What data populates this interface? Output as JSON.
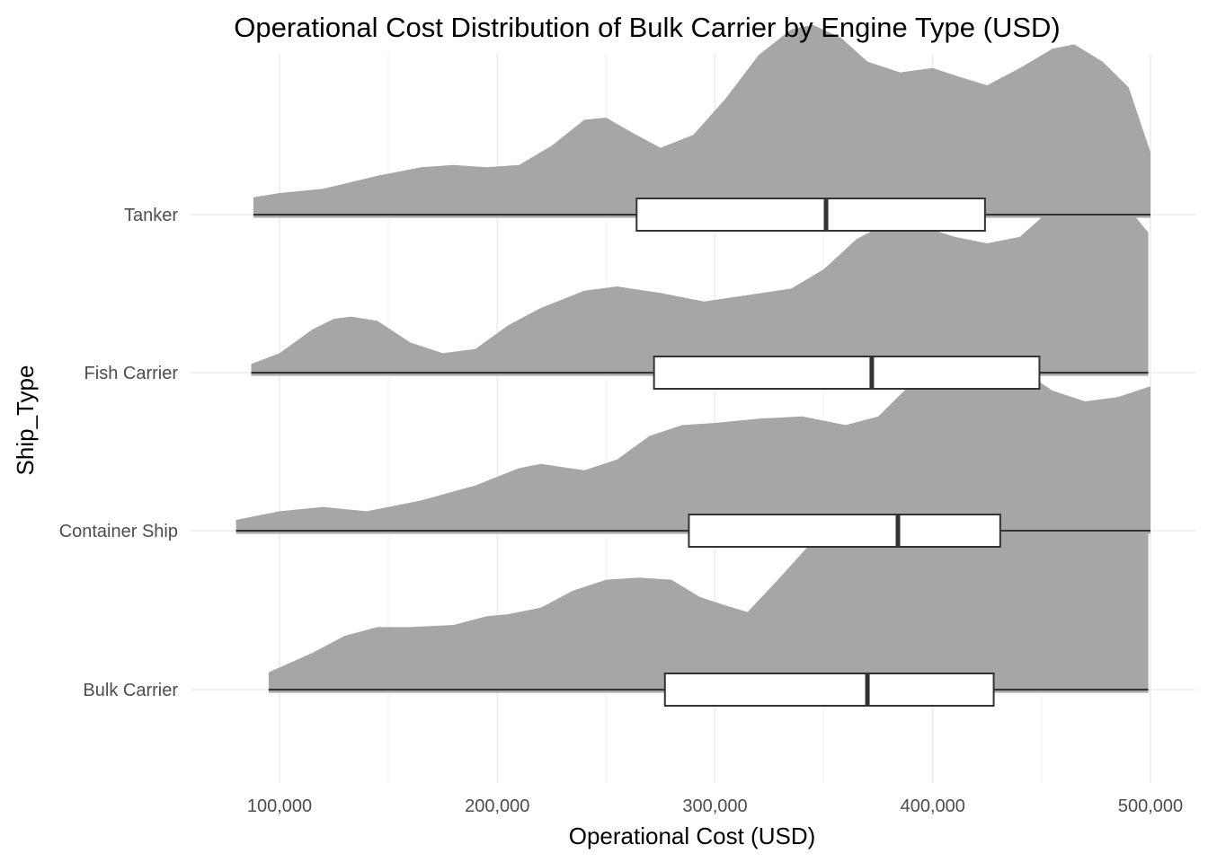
{
  "chart_data": {
    "type": "ridgeline",
    "title": "Operational Cost Distribution of Bulk Carrier by Engine Type (USD)",
    "xlabel": "Operational Cost (USD)",
    "ylabel": "Ship_Type",
    "xlim": [
      60000,
      520000
    ],
    "x_ticks": [
      100000,
      200000,
      300000,
      400000,
      500000
    ],
    "x_tick_labels": [
      "100,000",
      "200,000",
      "300,000",
      "400,000",
      "500,000"
    ],
    "categories": [
      "Bulk Carrier",
      "Container Ship",
      "Fish Carrier",
      "Tanker"
    ],
    "grid": true,
    "fill_color": "#a6a6a6",
    "box_color": "#ffffff",
    "line_color": "#333333",
    "series": [
      {
        "name": "Bulk Carrier",
        "density": [
          [
            95000,
            0.08
          ],
          [
            115000,
            0.17
          ],
          [
            130000,
            0.25
          ],
          [
            145000,
            0.29
          ],
          [
            160000,
            0.29
          ],
          [
            180000,
            0.3
          ],
          [
            195000,
            0.34
          ],
          [
            205000,
            0.35
          ],
          [
            220000,
            0.38
          ],
          [
            235000,
            0.46
          ],
          [
            250000,
            0.51
          ],
          [
            265000,
            0.52
          ],
          [
            280000,
            0.51
          ],
          [
            293000,
            0.43
          ],
          [
            305000,
            0.39
          ],
          [
            315000,
            0.36
          ],
          [
            328000,
            0.5
          ],
          [
            345000,
            0.69
          ],
          [
            362000,
            0.78
          ],
          [
            380000,
            0.8
          ],
          [
            395000,
            0.86
          ],
          [
            410000,
            0.95
          ],
          [
            420000,
            0.96
          ],
          [
            435000,
            0.91
          ],
          [
            455000,
            0.82
          ],
          [
            470000,
            0.77
          ],
          [
            485000,
            0.79
          ],
          [
            499000,
            0.87
          ]
        ],
        "box": {
          "q1": 277000,
          "median": 370000,
          "q3": 428000,
          "min": 95000,
          "max": 499000
        }
      },
      {
        "name": "Container Ship",
        "density": [
          [
            80000,
            0.05
          ],
          [
            100000,
            0.09
          ],
          [
            120000,
            0.11
          ],
          [
            140000,
            0.09
          ],
          [
            165000,
            0.14
          ],
          [
            190000,
            0.21
          ],
          [
            210000,
            0.29
          ],
          [
            220000,
            0.31
          ],
          [
            240000,
            0.28
          ],
          [
            255000,
            0.33
          ],
          [
            270000,
            0.44
          ],
          [
            285000,
            0.49
          ],
          [
            300000,
            0.5
          ],
          [
            320000,
            0.52
          ],
          [
            340000,
            0.53
          ],
          [
            360000,
            0.49
          ],
          [
            375000,
            0.53
          ],
          [
            390000,
            0.68
          ],
          [
            405000,
            0.8
          ],
          [
            417000,
            0.87
          ],
          [
            427000,
            0.85
          ],
          [
            440000,
            0.75
          ],
          [
            455000,
            0.65
          ],
          [
            470000,
            0.6
          ],
          [
            485000,
            0.62
          ],
          [
            500000,
            0.67
          ]
        ],
        "box": {
          "q1": 288000,
          "median": 384000,
          "q3": 431000,
          "min": 80000,
          "max": 500000
        }
      },
      {
        "name": "Fish Carrier",
        "density": [
          [
            87000,
            0.04
          ],
          [
            100000,
            0.09
          ],
          [
            115000,
            0.2
          ],
          [
            125000,
            0.25
          ],
          [
            133000,
            0.26
          ],
          [
            145000,
            0.24
          ],
          [
            160000,
            0.14
          ],
          [
            175000,
            0.09
          ],
          [
            190000,
            0.11
          ],
          [
            205000,
            0.22
          ],
          [
            220000,
            0.3
          ],
          [
            240000,
            0.38
          ],
          [
            255000,
            0.4
          ],
          [
            275000,
            0.37
          ],
          [
            295000,
            0.33
          ],
          [
            315000,
            0.36
          ],
          [
            335000,
            0.39
          ],
          [
            350000,
            0.48
          ],
          [
            365000,
            0.62
          ],
          [
            380000,
            0.7
          ],
          [
            395000,
            0.68
          ],
          [
            410000,
            0.63
          ],
          [
            425000,
            0.6
          ],
          [
            440000,
            0.63
          ],
          [
            450000,
            0.72
          ],
          [
            462000,
            0.86
          ],
          [
            470000,
            0.89
          ],
          [
            480000,
            0.86
          ],
          [
            490000,
            0.76
          ],
          [
            499000,
            0.65
          ]
        ],
        "box": {
          "q1": 272000,
          "median": 372000,
          "q3": 449000,
          "min": 87000,
          "max": 499000
        }
      },
      {
        "name": "Tanker",
        "density": [
          [
            88000,
            0.08
          ],
          [
            100000,
            0.1
          ],
          [
            120000,
            0.12
          ],
          [
            145000,
            0.18
          ],
          [
            165000,
            0.22
          ],
          [
            180000,
            0.23
          ],
          [
            195000,
            0.22
          ],
          [
            210000,
            0.23
          ],
          [
            225000,
            0.32
          ],
          [
            240000,
            0.44
          ],
          [
            250000,
            0.45
          ],
          [
            262000,
            0.38
          ],
          [
            275000,
            0.31
          ],
          [
            290000,
            0.37
          ],
          [
            305000,
            0.54
          ],
          [
            320000,
            0.74
          ],
          [
            335000,
            0.86
          ],
          [
            345000,
            0.88
          ],
          [
            358000,
            0.82
          ],
          [
            370000,
            0.71
          ],
          [
            385000,
            0.66
          ],
          [
            400000,
            0.68
          ],
          [
            412000,
            0.64
          ],
          [
            425000,
            0.6
          ],
          [
            440000,
            0.68
          ],
          [
            455000,
            0.77
          ],
          [
            465000,
            0.79
          ],
          [
            478000,
            0.71
          ],
          [
            490000,
            0.59
          ],
          [
            500000,
            0.29
          ]
        ],
        "box": {
          "q1": 264000,
          "median": 351000,
          "q3": 424000,
          "min": 88000,
          "max": 500000
        }
      }
    ]
  }
}
